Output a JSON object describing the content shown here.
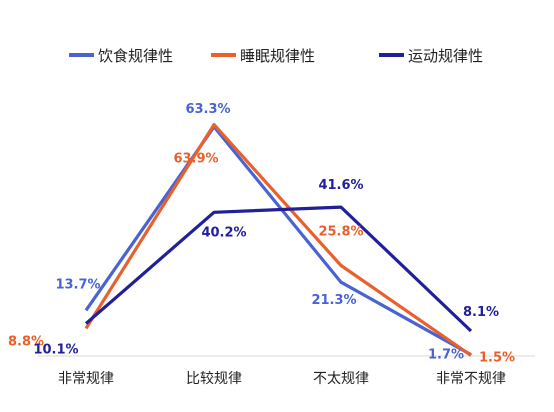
{
  "chart_data": {
    "type": "line",
    "categories": [
      "非常规律",
      "比较规律",
      "不太规律",
      "非常不规律"
    ],
    "y_unit": "%",
    "ylim": [
      0,
      70
    ],
    "grid": false,
    "legend_position": "top",
    "series": [
      {
        "name": "饮食规律性",
        "color": "#4a63d3",
        "values": [
          13.7,
          63.3,
          21.3,
          1.7
        ],
        "labels": [
          "13.7%",
          "63.3%",
          "21.3%",
          "1.7%"
        ]
      },
      {
        "name": "睡眠规律性",
        "color": "#e8612c",
        "values": [
          8.8,
          63.9,
          25.8,
          1.5
        ],
        "labels": [
          "8.8%",
          "63.9%",
          "25.8%",
          "1.5%"
        ]
      },
      {
        "name": "运动规律性",
        "color": "#21209a",
        "values": [
          10.1,
          40.2,
          41.6,
          8.1
        ],
        "labels": [
          "10.1%",
          "40.2%",
          "41.6%",
          "8.1%"
        ]
      }
    ]
  }
}
